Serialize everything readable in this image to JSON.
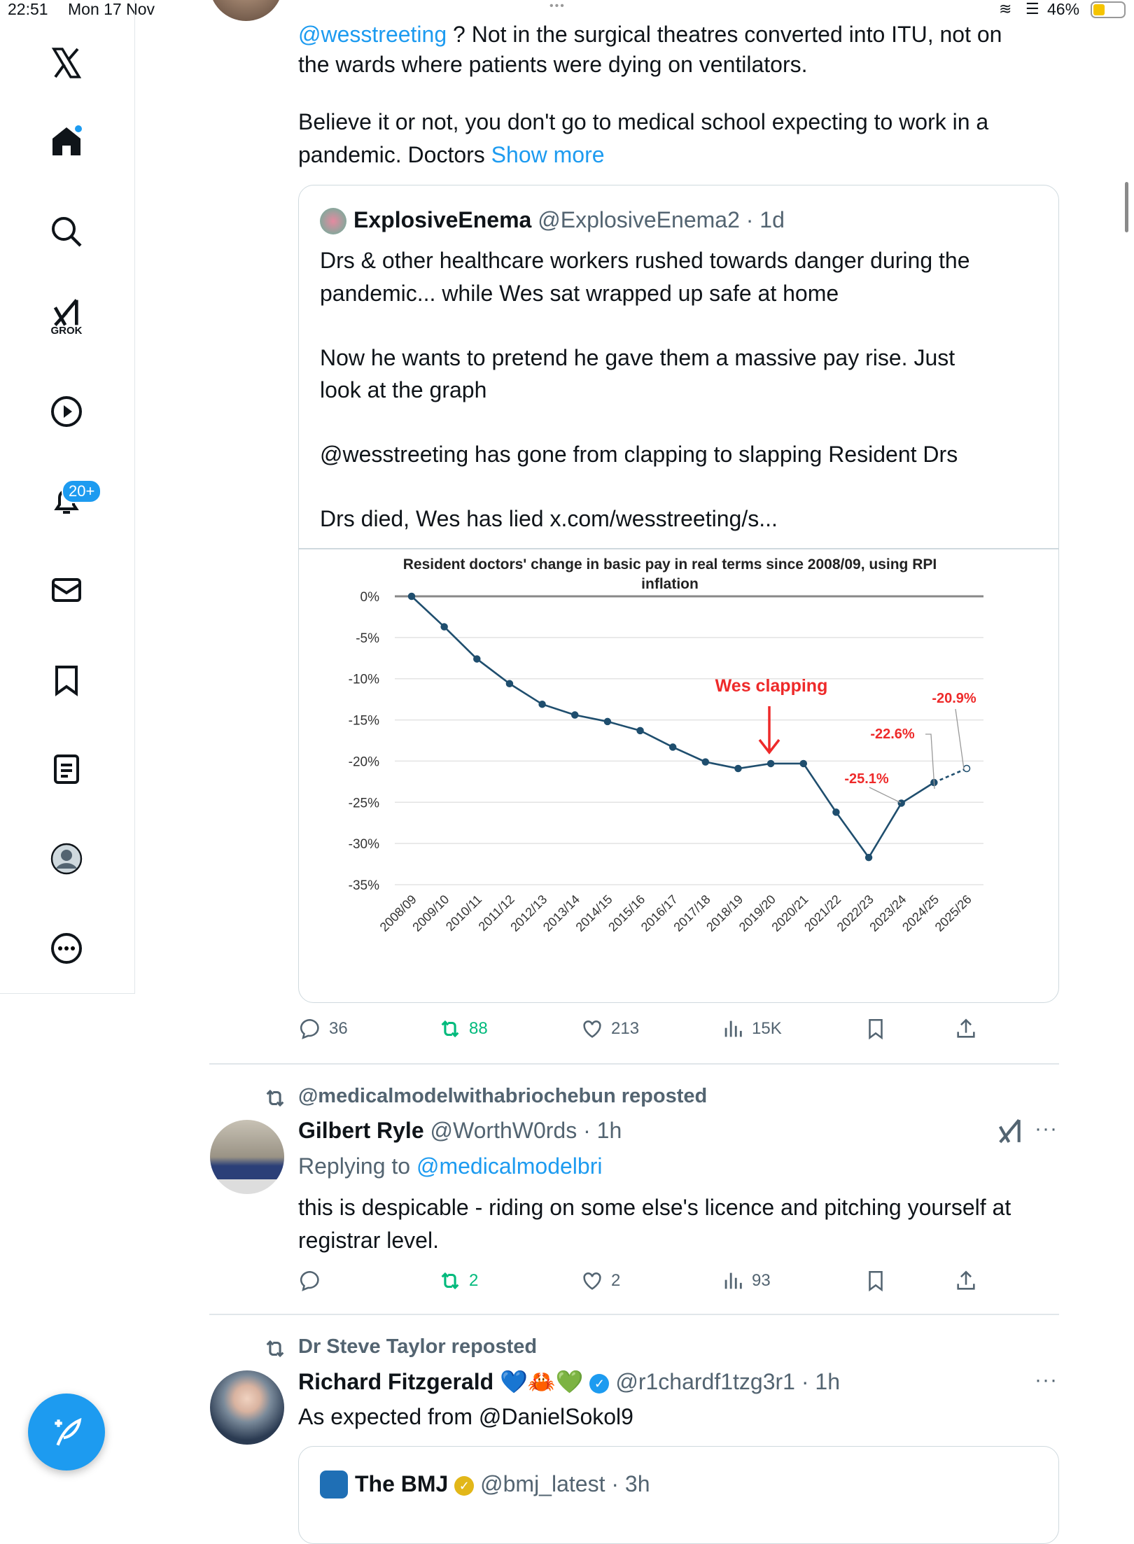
{
  "status_bar": {
    "time": "22:51",
    "date": "Mon 17 Nov",
    "battery": "46%"
  },
  "sidebar": {
    "items": [
      {
        "name": "home",
        "icon": "home-icon"
      },
      {
        "name": "search",
        "icon": "search-icon"
      },
      {
        "name": "grok",
        "icon": "grok-icon",
        "label": "GROK"
      },
      {
        "name": "video",
        "icon": "play-icon"
      },
      {
        "name": "notifications",
        "icon": "bell-icon",
        "badge": "20+"
      },
      {
        "name": "messages",
        "icon": "mail-icon"
      },
      {
        "name": "bookmarks",
        "icon": "bookmark-icon"
      },
      {
        "name": "lists",
        "icon": "list-icon"
      },
      {
        "name": "profile",
        "icon": "profile-icon"
      },
      {
        "name": "more",
        "icon": "more-icon"
      }
    ]
  },
  "tweet1": {
    "line1_mention": "@wesstreeting",
    "line1_rest": " ? Not in the surgical theatres converted into ITU, not on",
    "line2": "the wards where patients were dying on ventilators.",
    "line3": "Believe it or not, you don't go to medical school expecting to work in a",
    "line4": "pandemic. Doctors ",
    "show_more": "Show more",
    "quote": {
      "name": "ExplosiveEnema",
      "handle": "@ExplosiveEnema2",
      "time": "· 1d",
      "lines": [
        "Drs & other healthcare workers rushed towards danger during the",
        "pandemic... while Wes sat wrapped up safe at home",
        "Now he wants to pretend he gave them a massive pay rise. Just",
        "look at the graph",
        "@wesstreeting has gone from clapping to slapping Resident Drs",
        "Drs died, Wes has lied x.com/wesstreeting/s..."
      ]
    },
    "actions": {
      "replies": "36",
      "reposts": "88",
      "likes": "213",
      "views": "15K"
    }
  },
  "chart_data": {
    "type": "line",
    "title": "Resident doctors' change in basic pay in real terms since 2008/09, using RPI inflation",
    "title_line1": "Resident doctors' change in basic pay in real terms since 2008/09, using RPI",
    "title_line2": "inflation",
    "categories": [
      "2008/09",
      "2009/10",
      "2010/11",
      "2011/12",
      "2012/13",
      "2013/14",
      "2014/15",
      "2015/16",
      "2016/17",
      "2017/18",
      "2018/19",
      "2019/20",
      "2020/21",
      "2021/22",
      "2022/23",
      "2023/24",
      "2024/25",
      "2025/26"
    ],
    "values": [
      0,
      -3.7,
      -7.6,
      -10.6,
      -13.1,
      -14.4,
      -15.2,
      -16.3,
      -18.3,
      -20.1,
      -20.9,
      -20.3,
      -20.3,
      -26.2,
      -31.7,
      -25.1,
      -22.6,
      -20.9
    ],
    "projected_from_index": 16,
    "yticks": [
      "0%",
      "-5%",
      "-10%",
      "-15%",
      "-20%",
      "-25%",
      "-30%",
      "-35%"
    ],
    "ylim": [
      -35,
      0
    ],
    "grid": true,
    "line_color": "#1f4e6e",
    "annotation_color": "#ee2a2a",
    "annotations": {
      "wes": "Wes clapping",
      "a": "-25.1%",
      "b": "-22.6%",
      "c": "-20.9%"
    }
  },
  "tweet2": {
    "repost_by": "@medicalmodelwithabriochebun reposted",
    "name": "Gilbert Ryle",
    "handle": "@WorthW0rds",
    "time": "· 1h",
    "replying_label": "Replying to ",
    "replying_to": "@medicalmodelbri",
    "line1": "this is despicable - riding on some else's licence and pitching yourself at",
    "line2": "registrar level.",
    "actions": {
      "reposts": "2",
      "likes": "2",
      "views": "93"
    }
  },
  "tweet3": {
    "repost_by": "Dr Steve Taylor reposted",
    "name": "Richard Fitzgerald",
    "emojis": "💙🦀💚",
    "handle": "@r1chardf1tzg3r1",
    "time": "· 1h",
    "body": "As expected from @DanielSokol9",
    "quote": {
      "name": "The BMJ",
      "handle": "@bmj_latest",
      "time": "· 3h",
      "logo_text": "thebmj"
    }
  }
}
